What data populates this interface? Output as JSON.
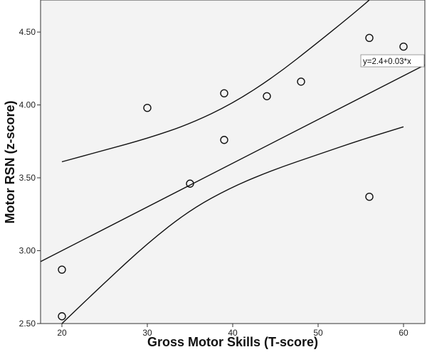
{
  "chart_data": {
    "type": "scatter",
    "xlabel": "Gross Motor Skills (T-score)",
    "ylabel": "Motor RSN (z-score)",
    "xlim": [
      17.5,
      62.5
    ],
    "ylim": [
      2.5,
      4.72
    ],
    "x_ticks": [
      20,
      30,
      40,
      50,
      60
    ],
    "x_tick_labels": [
      "20",
      "30",
      "40",
      "50",
      "60"
    ],
    "y_ticks": [
      2.5,
      3.0,
      3.5,
      4.0,
      4.5
    ],
    "y_tick_labels": [
      "2.50",
      "3.00",
      "3.50",
      "4.00",
      "4.50"
    ],
    "grid": false,
    "background_color": "#f3f3f3",
    "points": [
      {
        "x": 20,
        "y": 2.87
      },
      {
        "x": 20,
        "y": 2.55
      },
      {
        "x": 30,
        "y": 3.98
      },
      {
        "x": 35,
        "y": 3.46
      },
      {
        "x": 39,
        "y": 4.08
      },
      {
        "x": 39,
        "y": 3.76
      },
      {
        "x": 44,
        "y": 4.06
      },
      {
        "x": 48,
        "y": 4.16
      },
      {
        "x": 56,
        "y": 4.46
      },
      {
        "x": 56,
        "y": 3.37
      },
      {
        "x": 60,
        "y": 4.4
      }
    ],
    "fit_line": {
      "intercept": 2.4,
      "slope": 0.03,
      "label": "y=2.4+0.03*x"
    },
    "ci_upper": [
      {
        "x": 20,
        "y": 3.61
      },
      {
        "x": 25,
        "y": 3.69
      },
      {
        "x": 30,
        "y": 3.77
      },
      {
        "x": 35,
        "y": 3.87
      },
      {
        "x": 40,
        "y": 4.01
      },
      {
        "x": 45,
        "y": 4.2
      },
      {
        "x": 50,
        "y": 4.43
      },
      {
        "x": 54,
        "y": 4.62
      },
      {
        "x": 56,
        "y": 4.72
      }
    ],
    "ci_lower": [
      {
        "x": 20,
        "y": 2.5
      },
      {
        "x": 25,
        "y": 2.78
      },
      {
        "x": 30,
        "y": 3.05
      },
      {
        "x": 35,
        "y": 3.28
      },
      {
        "x": 40,
        "y": 3.44
      },
      {
        "x": 45,
        "y": 3.56
      },
      {
        "x": 50,
        "y": 3.66
      },
      {
        "x": 55,
        "y": 3.76
      },
      {
        "x": 60,
        "y": 3.85
      }
    ]
  }
}
